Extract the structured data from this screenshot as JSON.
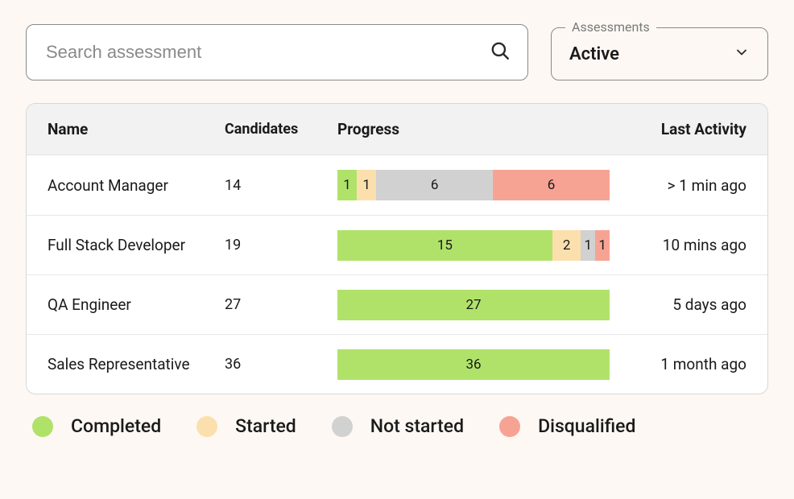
{
  "colors": {
    "completed": "#b0e26a",
    "started": "#fbe0ad",
    "not_started": "#d1d1d1",
    "disqualified": "#f7a394",
    "page_bg": "#fdf8f3",
    "border": "#8a8a8a",
    "text": "#1a1a1a"
  },
  "search": {
    "placeholder": "Search assessment"
  },
  "filter": {
    "label": "Assessments",
    "value": "Active"
  },
  "table": {
    "headers": {
      "name": "Name",
      "candidates": "Candidates",
      "progress": "Progress",
      "last_activity": "Last Activity"
    },
    "rows": [
      {
        "name": "Account Manager",
        "candidates": 14,
        "segments": [
          {
            "key": "completed",
            "value": 1
          },
          {
            "key": "started",
            "value": 1
          },
          {
            "key": "not_started",
            "value": 6
          },
          {
            "key": "disqualified",
            "value": 6
          }
        ],
        "last_activity": "> 1 min ago"
      },
      {
        "name": "Full Stack Developer",
        "candidates": 19,
        "segments": [
          {
            "key": "completed",
            "value": 15
          },
          {
            "key": "started",
            "value": 2
          },
          {
            "key": "not_started",
            "value": 1
          },
          {
            "key": "disqualified",
            "value": 1
          }
        ],
        "last_activity": "10 mins ago"
      },
      {
        "name": "QA Engineer",
        "candidates": 27,
        "segments": [
          {
            "key": "completed",
            "value": 27
          }
        ],
        "last_activity": "5 days ago"
      },
      {
        "name": "Sales Representative",
        "candidates": 36,
        "segments": [
          {
            "key": "completed",
            "value": 36
          }
        ],
        "last_activity": "1 month ago"
      }
    ]
  },
  "legend": [
    {
      "key": "completed",
      "label": "Completed"
    },
    {
      "key": "started",
      "label": "Started"
    },
    {
      "key": "not_started",
      "label": "Not started"
    },
    {
      "key": "disqualified",
      "label": "Disqualified"
    }
  ]
}
